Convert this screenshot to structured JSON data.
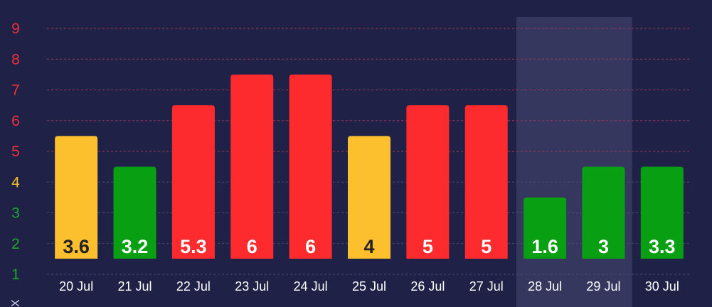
{
  "chart_data": {
    "type": "bar",
    "title": "",
    "xlabel": "",
    "ylabel": "X",
    "categories": [
      "20 Jul",
      "21 Jul",
      "22 Jul",
      "23 Jul",
      "24 Jul",
      "25 Jul",
      "26 Jul",
      "27 Jul",
      "28 Jul",
      "29 Jul",
      "30 Jul"
    ],
    "values": [
      3.6,
      3.2,
      5.3,
      6,
      6,
      4,
      5,
      5,
      1.6,
      3,
      3.3
    ],
    "bar_heights": [
      4,
      3,
      5,
      6,
      6,
      4,
      5,
      5,
      2,
      3,
      3
    ],
    "bar_colors": [
      "#fcbf2d",
      "#08a012",
      "#fd2a2e",
      "#fd2a2e",
      "#fd2a2e",
      "#fcbf2d",
      "#fd2a2e",
      "#fd2a2e",
      "#08a012",
      "#08a012",
      "#08a012"
    ],
    "label_colors": [
      "#222222",
      "#ffffff",
      "#ffffff",
      "#ffffff",
      "#ffffff",
      "#222222",
      "#ffffff",
      "#ffffff",
      "#ffffff",
      "#ffffff",
      "#ffffff"
    ],
    "yticks": [
      1,
      2,
      3,
      4,
      5,
      6,
      7,
      8,
      9
    ],
    "ytick_colors": [
      "#19a829",
      "#19a829",
      "#19a829",
      "#f5be2c",
      "#f0303a",
      "#f0303a",
      "#f0303a",
      "#f0303a",
      "#f0303a"
    ],
    "ylim": [
      1,
      9
    ],
    "grid": true,
    "highlight_range": [
      "28 Jul",
      "29 Jul"
    ],
    "colors": {
      "background": "#1f2147",
      "highlight": "#35375e",
      "grid": "#9a3a52",
      "grid_low": "#4a4e7a"
    }
  }
}
